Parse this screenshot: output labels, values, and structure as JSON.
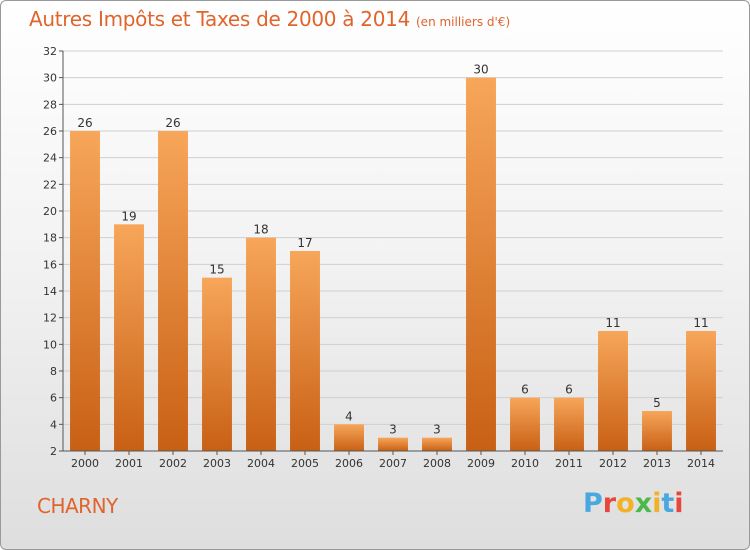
{
  "header": {
    "title": "Autres Impôts et Taxes de 2000 à 2014",
    "unit": "(en milliers d'€)"
  },
  "footer": {
    "place": "CHARNY",
    "logo": [
      "P",
      "r",
      "o",
      "x",
      "i",
      "t",
      "i"
    ]
  },
  "colors": {
    "title": "#e0642c",
    "bar_top": "#f7a65a",
    "bar_bottom": "#c86014",
    "logo": [
      "#4aa8e0",
      "#e8463c",
      "#f2b227",
      "#4cb84c",
      "#f2b227",
      "#4aa8e0",
      "#e8463c"
    ]
  },
  "chart_data": {
    "type": "bar",
    "title": "Autres Impôts et Taxes de 2000 à 2014",
    "subtitle": "(en milliers d'€)",
    "xlabel": "",
    "ylabel": "",
    "categories": [
      "2000",
      "2001",
      "2002",
      "2003",
      "2004",
      "2005",
      "2006",
      "2007",
      "2008",
      "2009",
      "2010",
      "2011",
      "2012",
      "2013",
      "2014"
    ],
    "values": [
      26,
      19,
      26,
      15,
      18,
      17,
      4,
      3,
      3,
      30,
      6,
      6,
      11,
      5,
      11
    ],
    "ylim": [
      2,
      32
    ],
    "yticks": [
      2,
      4,
      6,
      8,
      10,
      12,
      14,
      16,
      18,
      20,
      22,
      24,
      26,
      28,
      30,
      32
    ],
    "grid": true,
    "data_labels": true
  }
}
